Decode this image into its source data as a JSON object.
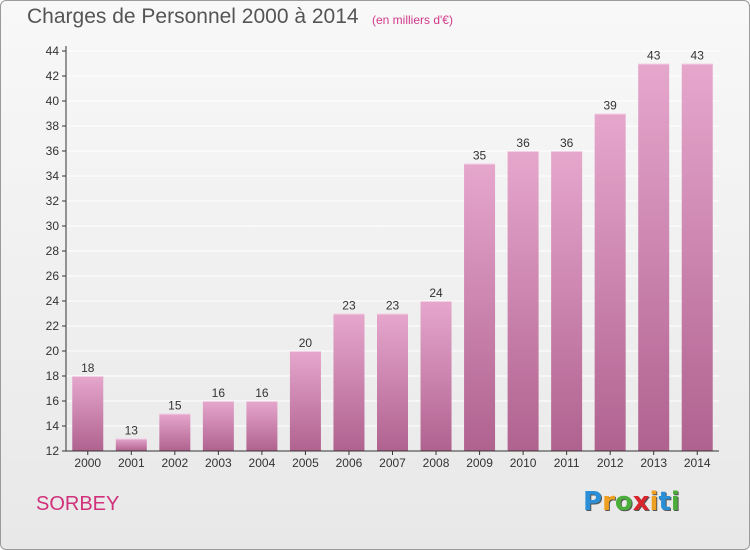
{
  "title": "Charges de Personnel 2000 à 2014",
  "subtitle": "(en milliers d'€)",
  "commune": "SORBEY",
  "logo": {
    "letters": [
      "P",
      "r",
      "o",
      "x",
      "i",
      "t",
      "i"
    ],
    "colors": [
      "#2a8fd6",
      "#f0a020",
      "#4cae3a",
      "#d8262c",
      "#f0a020",
      "#2a8fd6",
      "#4cae3a"
    ]
  },
  "colors": {
    "bar_top": "#e6a7cd",
    "bar_bottom": "#b0628f",
    "grid": "#ffffff",
    "axis": "#333333"
  },
  "chart_data": {
    "type": "bar",
    "title": "Charges de Personnel 2000 à 2014",
    "categories": [
      "2000",
      "2001",
      "2002",
      "2003",
      "2004",
      "2005",
      "2006",
      "2007",
      "2008",
      "2009",
      "2010",
      "2011",
      "2012",
      "2013",
      "2014"
    ],
    "values": [
      18,
      13,
      15,
      16,
      16,
      20,
      23,
      23,
      24,
      35,
      36,
      36,
      39,
      43,
      43
    ],
    "ylim": [
      12,
      44
    ],
    "yticks": [
      12,
      14,
      16,
      18,
      20,
      22,
      24,
      26,
      28,
      30,
      32,
      34,
      36,
      38,
      40,
      42,
      44
    ],
    "grid": true,
    "data_labels": true
  }
}
